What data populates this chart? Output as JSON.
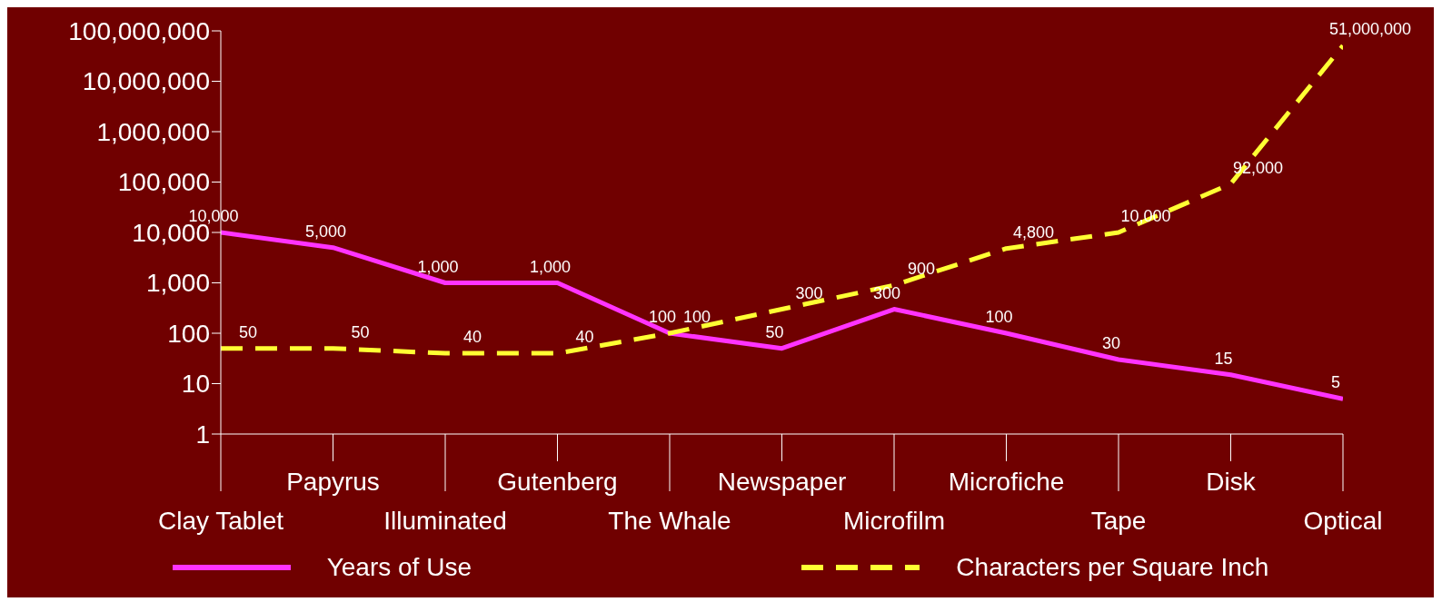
{
  "chart_data": {
    "type": "line",
    "categories": [
      "Clay Tablet",
      "Papyrus",
      "Illuminated",
      "Gutenberg",
      "The Whale",
      "Newspaper",
      "Microfilm",
      "Microfiche",
      "Tape",
      "Disk",
      "Optical"
    ],
    "series": [
      {
        "name": "Years of Use",
        "color": "#ff33ff",
        "line_style": "solid",
        "values": [
          10000,
          5000,
          1000,
          1000,
          100,
          50,
          300,
          100,
          30,
          15,
          5
        ],
        "value_labels": [
          "10,000",
          "5,000",
          "1,000",
          "1,000",
          "100",
          "50",
          "300",
          "100",
          "30",
          "15",
          "5"
        ]
      },
      {
        "name": "Characters per Square Inch",
        "color": "#ffff33",
        "line_style": "dashed",
        "values": [
          50,
          50,
          40,
          40,
          100,
          300,
          900,
          4800,
          10000,
          92000,
          51000000
        ],
        "value_labels": [
          "50",
          "50",
          "40",
          "40",
          "100",
          "300",
          "900",
          "4,800",
          "10,000",
          "92,000",
          "51,000,000"
        ]
      }
    ],
    "log": "y",
    "ylim": [
      1,
      100000000
    ],
    "yticks": [
      1,
      10,
      100,
      {
        "value": 1000,
        "label": "1,000"
      },
      {
        "value": 10000,
        "label": "10,000"
      },
      {
        "value": 100000,
        "label": "100,000"
      },
      {
        "value": 1000000,
        "label": "1,000,000"
      },
      {
        "value": 10000000,
        "label": "10,000,000"
      },
      {
        "value": 100000000,
        "label": "100,000,000"
      }
    ],
    "legend": "bottom",
    "marker": "none"
  }
}
